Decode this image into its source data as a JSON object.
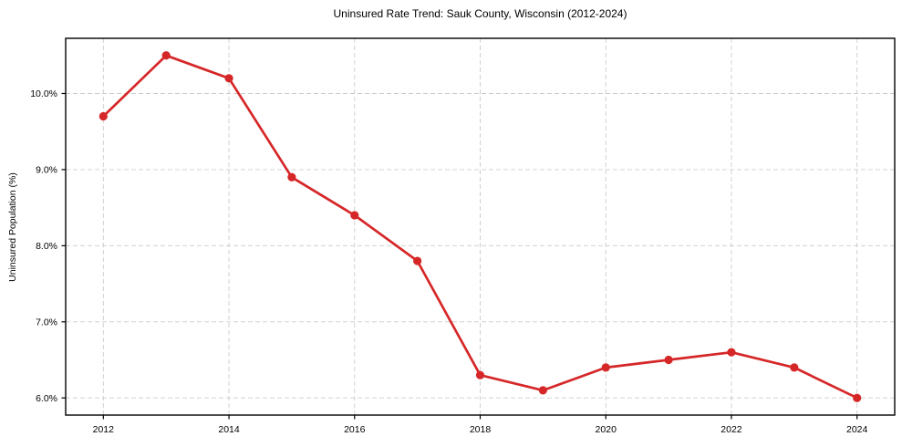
{
  "figure": {
    "background": "#ffffff"
  },
  "chart_data": {
    "type": "line",
    "title": "Uninsured Rate Trend: Sauk County, Wisconsin (2012-2024)",
    "xlabel": "",
    "ylabel": "Uninsured Population (%)",
    "x": [
      2012,
      2013,
      2014,
      2015,
      2016,
      2017,
      2018,
      2019,
      2020,
      2021,
      2022,
      2023,
      2024
    ],
    "values": [
      9.7,
      10.5,
      10.2,
      8.9,
      8.4,
      7.8,
      6.3,
      6.1,
      6.4,
      6.5,
      6.6,
      6.4,
      6.0
    ],
    "xlim": [
      2011.4,
      2024.6
    ],
    "ylim": [
      5.775,
      10.725
    ],
    "x_ticks": [
      2012,
      2014,
      2016,
      2018,
      2020,
      2022,
      2024
    ],
    "x_tick_labels": [
      "2012",
      "2014",
      "2016",
      "2018",
      "2020",
      "2022",
      "2024"
    ],
    "y_ticks": [
      6.0,
      7.0,
      8.0,
      9.0,
      10.0
    ],
    "y_tick_labels": [
      "6.0%",
      "7.0%",
      "8.0%",
      "9.0%",
      "10.0%"
    ],
    "grid": true,
    "legend": false,
    "line_color": "#d62728",
    "marker_color": "#d62728",
    "grid_color": "#cccccc",
    "axis_color": "#000000",
    "text_color": "#000000"
  }
}
